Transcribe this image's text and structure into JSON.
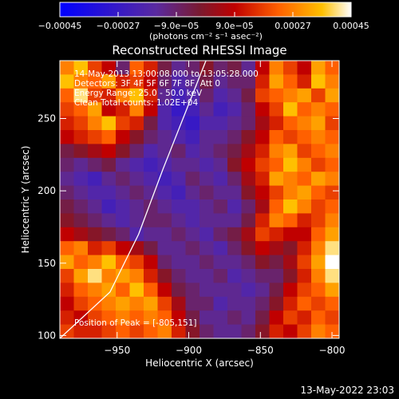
{
  "footer": {
    "timestamp": "13-May-2022 23:03"
  },
  "chart_data": {
    "type": "heatmap",
    "title": "Reconstructed RHESSI Image",
    "xlabel": "Heliocentric X (arcsec)",
    "ylabel": "Heliocentric Y (arcsec)",
    "xlim": [
      -990,
      -795
    ],
    "ylim": [
      98,
      290
    ],
    "xticks": [
      -950,
      -900,
      -850,
      -800
    ],
    "yticks": [
      100,
      150,
      200,
      250
    ],
    "xtick_labels": [
      "−950",
      "−900",
      "−850",
      "−800"
    ],
    "ytick_labels": [
      "100",
      "150",
      "200",
      "250"
    ],
    "colorbar": {
      "range": [
        -0.00045,
        0.00045
      ],
      "ticks": [
        -0.00045,
        -0.00027,
        -9e-05,
        9e-05,
        0.00027,
        0.00045
      ],
      "tick_labels": [
        "−0.00045",
        "−0.00027",
        "−9.0e−05",
        "9.0e−05",
        "0.00027",
        "0.00045"
      ],
      "unit_label": "(photons cm⁻² s⁻¹ asec⁻²)",
      "colors": [
        "#0000ff",
        "#5a2aa0",
        "#7a1a30",
        "#c00000",
        "#ff6000",
        "#ffc000",
        "#ffffff"
      ]
    },
    "annotations": [
      "14-May-2013 13:00:08.000 to 13:05:28.000",
      "Detectors: 3F 4F 5F 6F 7F 8F, Att 0",
      "Energy Range: 25.0 - 50.0 keV",
      "Clean      Total counts: 1.02E+04"
    ],
    "peak_label": "Position of Peak = [-805,151]",
    "peak": [
      -805,
      151
    ],
    "limb": [
      [
        -990,
        98
      ],
      [
        -955,
        130
      ],
      [
        -935,
        170
      ],
      [
        -918,
        215
      ],
      [
        -902,
        255
      ],
      [
        -888,
        290
      ]
    ],
    "intensity_grid": {
      "note": "relative flux, -1..1 (scaled by 0.00045)",
      "rows": [
        [
          0.6,
          0.8,
          0.4,
          0.2,
          -0.2,
          0.5,
          0.3,
          -0.1,
          -0.3,
          -0.2,
          0.0,
          -0.2,
          -0.1,
          -0.3,
          0.2,
          0.6,
          0.4,
          0.2,
          0.7,
          0.5
        ],
        [
          0.8,
          0.6,
          0.5,
          0.7,
          0.3,
          0.4,
          0.2,
          -0.2,
          -0.4,
          -0.3,
          -0.1,
          -0.3,
          -0.2,
          -0.2,
          0.3,
          0.7,
          0.5,
          0.3,
          0.8,
          0.6
        ],
        [
          0.5,
          0.9,
          0.4,
          0.3,
          0.6,
          0.8,
          0.3,
          -0.3,
          -0.5,
          -0.4,
          -0.2,
          -0.4,
          -0.3,
          -0.1,
          0.4,
          0.5,
          0.6,
          0.7,
          0.4,
          0.7
        ],
        [
          0.4,
          0.5,
          0.7,
          0.2,
          0.3,
          0.6,
          0.2,
          -0.4,
          -0.6,
          -0.5,
          -0.3,
          -0.5,
          -0.4,
          -0.2,
          0.2,
          0.4,
          0.8,
          0.5,
          0.6,
          0.5
        ],
        [
          0.3,
          0.4,
          0.6,
          0.8,
          0.4,
          0.3,
          -0.1,
          -0.4,
          -0.5,
          -0.6,
          -0.4,
          -0.4,
          -0.3,
          -0.2,
          0.1,
          0.3,
          0.5,
          0.6,
          0.7,
          0.4
        ],
        [
          0.2,
          0.3,
          0.4,
          0.5,
          0.2,
          0.0,
          -0.2,
          -0.3,
          -0.4,
          -0.5,
          -0.3,
          -0.3,
          -0.2,
          0.0,
          0.2,
          0.5,
          0.4,
          0.5,
          0.6,
          0.5
        ],
        [
          -0.1,
          0.0,
          0.1,
          0.2,
          0.0,
          -0.2,
          -0.4,
          -0.3,
          -0.2,
          -0.4,
          -0.3,
          -0.2,
          -0.1,
          0.1,
          0.3,
          0.6,
          0.7,
          0.4,
          0.5,
          0.6
        ],
        [
          -0.2,
          -0.3,
          -0.2,
          -0.1,
          -0.3,
          -0.4,
          -0.5,
          -0.4,
          -0.3,
          -0.3,
          -0.4,
          -0.3,
          0.0,
          0.2,
          0.4,
          0.5,
          0.8,
          0.6,
          0.4,
          0.5
        ],
        [
          -0.3,
          -0.4,
          -0.5,
          -0.3,
          -0.2,
          -0.3,
          -0.4,
          -0.5,
          -0.4,
          -0.2,
          -0.3,
          -0.4,
          -0.2,
          0.1,
          0.3,
          0.7,
          0.6,
          0.5,
          0.7,
          0.6
        ],
        [
          -0.2,
          -0.3,
          -0.4,
          -0.4,
          -0.3,
          -0.2,
          -0.3,
          -0.4,
          -0.5,
          -0.3,
          -0.2,
          -0.3,
          -0.3,
          0.0,
          0.2,
          0.4,
          0.6,
          0.7,
          0.5,
          0.4
        ],
        [
          -0.1,
          -0.2,
          -0.3,
          -0.5,
          -0.4,
          -0.3,
          -0.2,
          -0.3,
          -0.4,
          -0.4,
          -0.3,
          -0.2,
          -0.4,
          -0.2,
          0.1,
          0.5,
          0.8,
          0.6,
          0.4,
          0.5
        ],
        [
          0.0,
          -0.1,
          -0.2,
          -0.3,
          -0.4,
          -0.3,
          -0.2,
          -0.2,
          -0.3,
          -0.4,
          -0.3,
          -0.3,
          -0.3,
          -0.1,
          0.3,
          0.6,
          0.5,
          0.3,
          0.4,
          0.6
        ],
        [
          0.2,
          0.1,
          0.0,
          -0.1,
          -0.2,
          -0.4,
          -0.3,
          -0.3,
          -0.2,
          -0.3,
          -0.4,
          -0.2,
          -0.1,
          0.1,
          0.4,
          0.3,
          0.2,
          0.2,
          0.5,
          0.7
        ],
        [
          0.5,
          0.6,
          0.3,
          0.4,
          0.2,
          0.1,
          -0.1,
          -0.3,
          -0.3,
          -0.2,
          -0.3,
          -0.4,
          -0.2,
          0.0,
          0.2,
          0.1,
          0.0,
          0.3,
          0.6,
          0.9
        ],
        [
          0.7,
          0.5,
          0.6,
          0.8,
          0.5,
          0.4,
          0.2,
          -0.2,
          -0.3,
          -0.3,
          -0.2,
          -0.3,
          -0.3,
          -0.2,
          0.0,
          -0.1,
          0.1,
          0.4,
          0.7,
          1.0
        ],
        [
          0.4,
          0.7,
          0.9,
          0.6,
          0.7,
          0.6,
          0.3,
          0.0,
          -0.2,
          -0.3,
          -0.3,
          -0.2,
          -0.4,
          -0.3,
          -0.2,
          -0.2,
          0.0,
          0.3,
          0.6,
          0.9
        ],
        [
          0.3,
          0.5,
          0.6,
          0.7,
          0.5,
          0.8,
          0.5,
          0.2,
          -0.1,
          -0.2,
          -0.3,
          -0.3,
          -0.3,
          -0.4,
          -0.3,
          -0.1,
          0.2,
          0.4,
          0.5,
          0.7
        ],
        [
          0.2,
          0.4,
          0.5,
          0.6,
          0.7,
          0.6,
          0.7,
          0.4,
          0.1,
          -0.2,
          -0.2,
          -0.4,
          -0.3,
          -0.3,
          -0.2,
          0.0,
          0.3,
          0.5,
          0.4,
          0.5
        ],
        [
          0.3,
          0.2,
          0.4,
          0.5,
          0.6,
          0.5,
          0.6,
          0.5,
          0.2,
          -0.1,
          -0.3,
          -0.3,
          -0.2,
          -0.3,
          -0.1,
          0.2,
          0.4,
          0.3,
          0.5,
          0.4
        ],
        [
          0.4,
          0.3,
          0.3,
          0.4,
          0.5,
          0.4,
          0.5,
          0.6,
          0.3,
          0.0,
          -0.2,
          -0.3,
          -0.3,
          -0.2,
          0.0,
          0.3,
          0.2,
          0.4,
          0.6,
          0.5
        ]
      ]
    }
  }
}
